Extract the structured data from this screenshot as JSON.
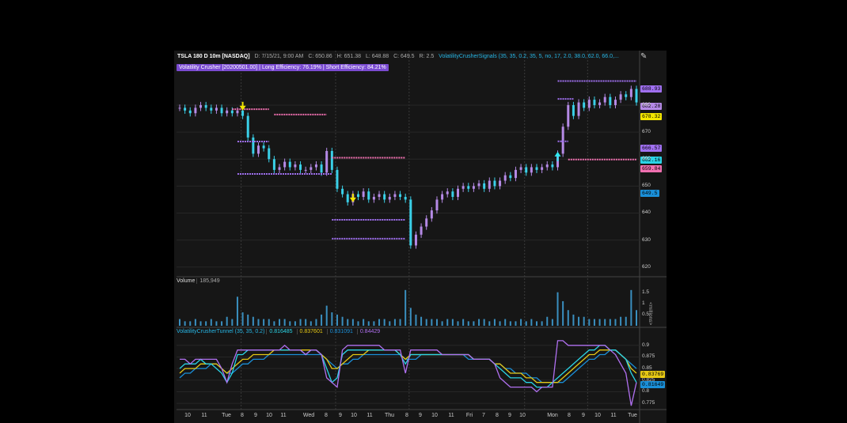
{
  "header": {
    "ticker": "TSLA 180 D 10m [NASDAQ]",
    "date": "D: 7/15/21, 9:00 AM",
    "close": "C: 650.86",
    "high": "H: 651.38",
    "low": "L: 648.88",
    "last": "C: 649.5",
    "range": "R: 2.5",
    "signals": "VolatilityCrusherSignals (35, 35, 0.2, 35, 5, no, 17, 2.0, 38.0, 62.0, 66.0,...",
    "efficiency": "Volatility Crusher [20200501.00] | Long Efficiency: 76.19% | Short Efficiency: 84.21%"
  },
  "colors": {
    "up_candle": "#b58ae6",
    "down_candle": "#3ad0e8",
    "purple_level": "#a070f0",
    "pink_level": "#f070b0",
    "signal_down": "#f3e600",
    "signal_up": "#30e8f0",
    "volume": "#3a8fbf",
    "tunnel_cyan": "#2ad4e6",
    "tunnel_yellow": "#e6c814",
    "tunnel_blue": "#1a8fd8",
    "tunnel_purple": "#b070f0"
  },
  "price_axis": {
    "ticks": [
      "680",
      "670",
      "660",
      "650",
      "640",
      "630",
      "620"
    ],
    "labels": [
      {
        "text": "688.93",
        "color": "#a070f0"
      },
      {
        "text": "682.28",
        "color": "#b58ae6"
      },
      {
        "text": "678.32",
        "color": "#f3e600"
      },
      {
        "text": "666.57",
        "color": "#a070f0"
      },
      {
        "text": "662.16",
        "color": "#2ad4e6"
      },
      {
        "text": "659.84",
        "color": "#f070b0"
      },
      {
        "text": "649.5",
        "color": "#1a8fd8"
      }
    ]
  },
  "volume_panel": {
    "title": "Volume",
    "value": "185,949",
    "ticks": [
      "1.5",
      "1",
      "0.5"
    ],
    "unit": "<millions>"
  },
  "tunnel_panel": {
    "title": "VolatilityCrusherTunnel (35, 35, 0.2)",
    "values": [
      "0.816485",
      "0.837601",
      "0.831091",
      "0.84429"
    ],
    "ticks": [
      "0.9",
      "0.875",
      "0.85",
      "0.825",
      "0.8",
      "0.775"
    ],
    "labels": [
      {
        "text": "0.83769",
        "color": "#e6c814"
      },
      {
        "text": "0.81649",
        "color": "#1a8fd8"
      }
    ]
  },
  "x_axis": [
    "10",
    "11",
    "Tue",
    "8",
    "9",
    "10",
    "11",
    "Wed",
    "8",
    "9",
    "10",
    "11",
    "Thu",
    "8",
    "9",
    "10",
    "11",
    "Fri",
    "7",
    "8",
    "9",
    "10",
    "Mon",
    "8",
    "9",
    "10",
    "11",
    "Tue"
  ],
  "chart_data": {
    "type": "line",
    "title": "TSLA 180 D 10m [NASDAQ]",
    "ylim": [
      617,
      692
    ],
    "x_ticks": [
      "10",
      "11",
      "Tue",
      "8",
      "9",
      "10",
      "11",
      "Wed",
      "8",
      "9",
      "10",
      "11",
      "Thu",
      "8",
      "9",
      "10",
      "11",
      "Fri",
      "7",
      "8",
      "9",
      "10",
      "Mon",
      "8",
      "9",
      "10",
      "11",
      "Tue"
    ],
    "price_series": {
      "name": "TSLA",
      "values": [
        679,
        678,
        677,
        679,
        680,
        679,
        678,
        679,
        677,
        678,
        677,
        678,
        676,
        668,
        662,
        665,
        664,
        660,
        656,
        657,
        659,
        657,
        658,
        656,
        656,
        657,
        658,
        655,
        663,
        656,
        649,
        647,
        644,
        647,
        646,
        648,
        645,
        646,
        647,
        645,
        646,
        647,
        646,
        645,
        628,
        632,
        635,
        638,
        641,
        645,
        647,
        648,
        646,
        649,
        650,
        649,
        650,
        651,
        649,
        652,
        650,
        652,
        654,
        653,
        656,
        657,
        655,
        657,
        656,
        657,
        658,
        657,
        662,
        672,
        680,
        676,
        681,
        679,
        682,
        680,
        681,
        683,
        680,
        682,
        684,
        683,
        686,
        681
      ]
    },
    "levels": [
      {
        "name": "purple",
        "y": 688.93
      },
      {
        "name": "purple",
        "y": 666.57
      },
      {
        "name": "pink",
        "y": 659.84
      }
    ],
    "signals": [
      {
        "type": "down",
        "y": 678
      },
      {
        "type": "down",
        "y": 644
      },
      {
        "type": "up",
        "y": 661
      }
    ],
    "volume": {
      "values": [
        0.3,
        0.2,
        0.2,
        0.3,
        0.2,
        0.2,
        0.3,
        0.2,
        0.2,
        0.4,
        0.3,
        1.3,
        0.6,
        0.5,
        0.4,
        0.3,
        0.3,
        0.3,
        0.2,
        0.3,
        0.3,
        0.2,
        0.2,
        0.3,
        0.3,
        0.2,
        0.3,
        0.5,
        0.9,
        0.6,
        0.5,
        0.4,
        0.3,
        0.3,
        0.2,
        0.3,
        0.2,
        0.2,
        0.3,
        0.3,
        0.2,
        0.3,
        0.3,
        1.6,
        0.8,
        0.5,
        0.4,
        0.3,
        0.3,
        0.3,
        0.2,
        0.3,
        0.3,
        0.2,
        0.3,
        0.2,
        0.2,
        0.3,
        0.3,
        0.2,
        0.3,
        0.2,
        0.3,
        0.2,
        0.2,
        0.3,
        0.2,
        0.3,
        0.2,
        0.2,
        0.4,
        0.3,
        1.5,
        1.1,
        0.7,
        0.5,
        0.4,
        0.4,
        0.3,
        0.3,
        0.3,
        0.3,
        0.3,
        0.3,
        0.4,
        0.4,
        1.6,
        0.7
      ]
    },
    "tunnel": {
      "ylim": [
        0.765,
        0.915
      ],
      "purple": [
        0.87,
        0.87,
        0.86,
        0.87,
        0.87,
        0.87,
        0.87,
        0.87,
        0.85,
        0.82,
        0.86,
        0.89,
        0.89,
        0.89,
        0.89,
        0.89,
        0.89,
        0.89,
        0.89,
        0.89,
        0.9,
        0.89,
        0.89,
        0.89,
        0.88,
        0.89,
        0.89,
        0.88,
        0.83,
        0.82,
        0.81,
        0.89,
        0.9,
        0.9,
        0.9,
        0.9,
        0.9,
        0.9,
        0.9,
        0.89,
        0.89,
        0.89,
        0.89,
        0.84,
        0.89,
        0.89,
        0.89,
        0.89,
        0.89,
        0.89,
        0.88,
        0.88,
        0.88,
        0.88,
        0.88,
        0.88,
        0.87,
        0.87,
        0.87,
        0.87,
        0.86,
        0.83,
        0.82,
        0.81,
        0.81,
        0.81,
        0.81,
        0.81,
        0.8,
        0.81,
        0.81,
        0.81,
        0.91,
        0.91,
        0.9,
        0.9,
        0.9,
        0.9,
        0.9,
        0.9,
        0.9,
        0.9,
        0.89,
        0.88,
        0.86,
        0.84,
        0.77,
        0.82
      ],
      "cyan": [
        0.85,
        0.86,
        0.86,
        0.86,
        0.87,
        0.86,
        0.86,
        0.85,
        0.84,
        0.82,
        0.84,
        0.88,
        0.88,
        0.89,
        0.89,
        0.89,
        0.89,
        0.89,
        0.89,
        0.89,
        0.89,
        0.89,
        0.89,
        0.89,
        0.88,
        0.89,
        0.89,
        0.88,
        0.85,
        0.82,
        0.83,
        0.88,
        0.89,
        0.89,
        0.89,
        0.89,
        0.89,
        0.89,
        0.89,
        0.89,
        0.89,
        0.89,
        0.88,
        0.86,
        0.88,
        0.88,
        0.88,
        0.88,
        0.88,
        0.88,
        0.88,
        0.88,
        0.88,
        0.88,
        0.88,
        0.88,
        0.87,
        0.87,
        0.87,
        0.87,
        0.86,
        0.85,
        0.84,
        0.83,
        0.83,
        0.83,
        0.82,
        0.82,
        0.81,
        0.81,
        0.81,
        0.82,
        0.83,
        0.84,
        0.85,
        0.86,
        0.87,
        0.88,
        0.89,
        0.89,
        0.9,
        0.9,
        0.89,
        0.89,
        0.88,
        0.87,
        0.84,
        0.82
      ],
      "yellow": [
        0.84,
        0.85,
        0.85,
        0.85,
        0.86,
        0.86,
        0.86,
        0.86,
        0.85,
        0.84,
        0.85,
        0.86,
        0.87,
        0.87,
        0.88,
        0.88,
        0.88,
        0.88,
        0.89,
        0.89,
        0.89,
        0.89,
        0.89,
        0.89,
        0.89,
        0.89,
        0.89,
        0.88,
        0.87,
        0.85,
        0.85,
        0.86,
        0.87,
        0.88,
        0.88,
        0.88,
        0.89,
        0.89,
        0.89,
        0.89,
        0.89,
        0.89,
        0.88,
        0.87,
        0.88,
        0.88,
        0.88,
        0.88,
        0.88,
        0.88,
        0.88,
        0.88,
        0.88,
        0.88,
        0.88,
        0.88,
        0.87,
        0.87,
        0.87,
        0.87,
        0.86,
        0.86,
        0.85,
        0.84,
        0.84,
        0.84,
        0.83,
        0.83,
        0.82,
        0.82,
        0.82,
        0.82,
        0.82,
        0.83,
        0.84,
        0.85,
        0.86,
        0.87,
        0.88,
        0.88,
        0.89,
        0.89,
        0.89,
        0.89,
        0.88,
        0.87,
        0.85,
        0.84
      ],
      "blue": [
        0.83,
        0.84,
        0.84,
        0.85,
        0.85,
        0.85,
        0.86,
        0.86,
        0.85,
        0.84,
        0.84,
        0.85,
        0.86,
        0.86,
        0.87,
        0.87,
        0.87,
        0.88,
        0.88,
        0.88,
        0.88,
        0.88,
        0.88,
        0.88,
        0.88,
        0.88,
        0.88,
        0.88,
        0.87,
        0.86,
        0.85,
        0.86,
        0.86,
        0.87,
        0.87,
        0.88,
        0.88,
        0.88,
        0.88,
        0.88,
        0.88,
        0.88,
        0.88,
        0.87,
        0.87,
        0.87,
        0.88,
        0.88,
        0.88,
        0.88,
        0.88,
        0.88,
        0.88,
        0.88,
        0.88,
        0.87,
        0.87,
        0.87,
        0.87,
        0.87,
        0.86,
        0.86,
        0.85,
        0.85,
        0.84,
        0.84,
        0.84,
        0.83,
        0.83,
        0.82,
        0.82,
        0.82,
        0.82,
        0.82,
        0.83,
        0.84,
        0.85,
        0.86,
        0.87,
        0.87,
        0.88,
        0.88,
        0.89,
        0.89,
        0.88,
        0.87,
        0.86,
        0.85
      ]
    }
  }
}
